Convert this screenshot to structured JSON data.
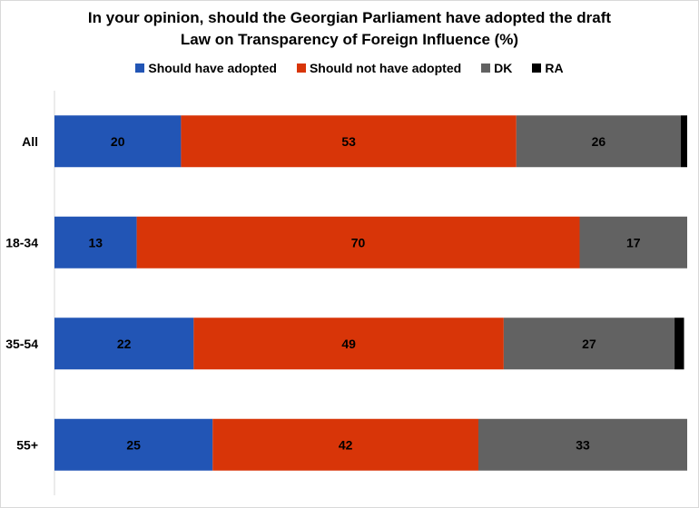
{
  "chart_data": {
    "type": "bar",
    "orientation": "horizontal",
    "stacked": true,
    "title_lines": [
      "In your opinion, should the Georgian Parliament have adopted the draft",
      "Law on Transparency of Foreign Influence (%)"
    ],
    "categories": [
      "All",
      "18-34",
      "35-54",
      "55+"
    ],
    "series": [
      {
        "name": "Should have adopted",
        "color": "#2255b5",
        "values": [
          20,
          13,
          22,
          25
        ]
      },
      {
        "name": "Should not have adopted",
        "color": "#d83508",
        "values": [
          53,
          70,
          49,
          42
        ]
      },
      {
        "name": "DK",
        "color": "#626262",
        "values": [
          26,
          17,
          27,
          33
        ]
      },
      {
        "name": "RA",
        "color": "#000000",
        "values": [
          1,
          1,
          1.5,
          0.3
        ]
      }
    ],
    "data_labels_series": [
      "Should have adopted",
      "Should not have adopted",
      "DK"
    ],
    "xlim": [
      0,
      100
    ],
    "legend_position": "top",
    "grid": false
  }
}
